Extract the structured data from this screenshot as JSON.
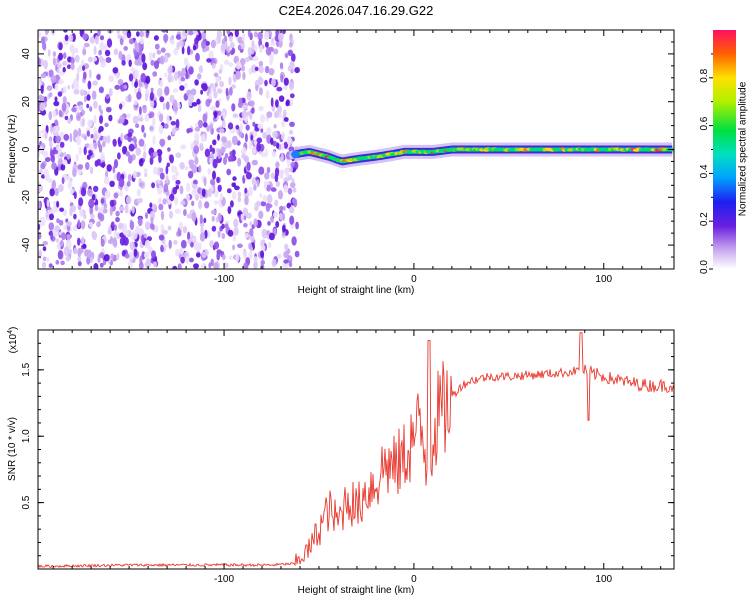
{
  "chart_data": [
    {
      "type": "heatmap",
      "title": "C2E4.2026.047.16.29.G22",
      "xlabel": "Height of straight line (km)",
      "ylabel": "Frequency (Hz)",
      "xlim": [
        -198,
        137
      ],
      "ylim": [
        -50,
        50
      ],
      "x_ticks": [
        -100,
        0,
        100
      ],
      "x_tick_labels": [
        "-100",
        "0",
        "100"
      ],
      "y_ticks": [
        -40,
        -20,
        0,
        20,
        40
      ],
      "y_tick_labels": [
        "-40",
        "-20",
        "0",
        "20",
        "40"
      ],
      "noise_region_x": [
        -198,
        -63
      ],
      "signal_start_x": -63,
      "ridge": {
        "x": [
          -63,
          -55,
          -45,
          -38,
          -30,
          -20,
          -12,
          -5,
          0,
          10,
          20,
          40,
          60,
          80,
          100,
          120,
          137
        ],
        "freq": [
          -2,
          -1,
          -3,
          -5,
          -4,
          -3,
          -2,
          -1,
          -1,
          -1,
          0,
          0,
          0,
          0,
          0,
          0,
          0
        ]
      },
      "colorbar": {
        "label": "Normalized spectral amplitude",
        "range": [
          0,
          1
        ],
        "ticks": [
          0,
          0.2,
          0.4,
          0.6,
          0.8
        ],
        "tick_labels": [
          "0.0",
          "0.2",
          "0.4",
          "0.6",
          "0.8"
        ]
      }
    },
    {
      "type": "line",
      "xlabel": "Height of straight line (km)",
      "ylabel": "SNR (10 * v/v)",
      "y_scale_label": "(x10",
      "y_scale_exp": "4",
      "y_scale_close": ")",
      "xlim": [
        -198,
        137
      ],
      "ylim": [
        0,
        1.8
      ],
      "x_ticks": [
        -100,
        0,
        100
      ],
      "x_tick_labels": [
        "-100",
        "0",
        "100"
      ],
      "y_ticks": [
        0.5,
        1.0,
        1.5
      ],
      "y_tick_labels": [
        "0.5",
        "1.0",
        "1.5"
      ],
      "color": "#e8372d",
      "series": [
        {
          "name": "SNR",
          "x": [
            -198,
            -150,
            -100,
            -75,
            -63,
            -55,
            -50,
            -45,
            -40,
            -35,
            -30,
            -25,
            -20,
            -15,
            -10,
            -5,
            0,
            3,
            6,
            8,
            10,
            13,
            16,
            20,
            25,
            30,
            40,
            50,
            60,
            70,
            80,
            88,
            95,
            105,
            115,
            125,
            137
          ],
          "y": [
            0.02,
            0.03,
            0.03,
            0.03,
            0.04,
            0.15,
            0.3,
            0.45,
            0.35,
            0.55,
            0.45,
            0.6,
            0.65,
            0.8,
            0.75,
            0.85,
            1.0,
            1.05,
            0.9,
            0.5,
            1.05,
            1.15,
            1.2,
            1.3,
            1.38,
            1.42,
            1.45,
            1.45,
            1.46,
            1.47,
            1.48,
            1.5,
            1.47,
            1.43,
            1.4,
            1.38,
            1.38
          ]
        }
      ]
    }
  ]
}
